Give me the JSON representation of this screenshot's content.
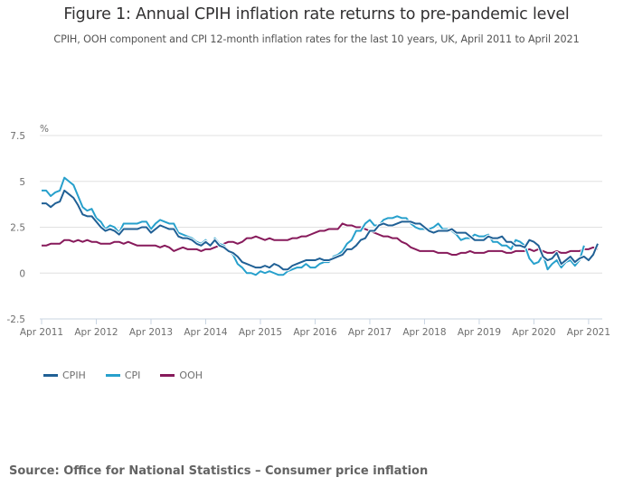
{
  "header": {
    "title": "Figure 1: Annual CPIH inflation rate returns to pre-pandemic level",
    "subtitle": "CPIH, OOH component and CPI 12-month inflation rates for the last 10 years, UK, April 2011 to April 2021"
  },
  "footer": {
    "source": "Source: Office for National Statistics – Consumer price inflation"
  },
  "chart_data": {
    "type": "line",
    "title": "Figure 1: Annual CPIH inflation rate returns to pre-pandemic level",
    "subtitle": "CPIH, OOH component and CPI 12-month inflation rates for the last 10 years, UK, April 2011 to April 2021",
    "xlabel": "",
    "ylabel": "%",
    "x_start": "Apr 2011",
    "x_end": "Apr 2021",
    "x_frequency": "monthly",
    "xticks": [
      "Apr 2011",
      "Apr 2012",
      "Apr 2013",
      "Apr 2014",
      "Apr 2015",
      "Apr 2016",
      "Apr 2017",
      "Apr 2018",
      "Apr 2019",
      "Apr 2020",
      "Apr 2021"
    ],
    "yticks": [
      -2.5,
      0,
      2.5,
      5,
      7.5
    ],
    "ylim": [
      -2.5,
      7.5
    ],
    "grid": true,
    "legend_position": "bottom-left",
    "series": [
      {
        "name": "CPIH",
        "color": "#206095",
        "values": [
          3.8,
          3.8,
          3.6,
          3.8,
          3.9,
          4.5,
          4.3,
          4.1,
          3.7,
          3.2,
          3.1,
          3.1,
          2.8,
          2.5,
          2.3,
          2.4,
          2.3,
          2.1,
          2.4,
          2.4,
          2.4,
          2.4,
          2.5,
          2.5,
          2.2,
          2.4,
          2.6,
          2.5,
          2.4,
          2.4,
          2.0,
          1.9,
          1.9,
          1.8,
          1.6,
          1.5,
          1.7,
          1.5,
          1.8,
          1.5,
          1.4,
          1.2,
          1.1,
          0.9,
          0.6,
          0.5,
          0.4,
          0.3,
          0.3,
          0.4,
          0.3,
          0.5,
          0.4,
          0.2,
          0.2,
          0.4,
          0.5,
          0.6,
          0.7,
          0.7,
          0.7,
          0.8,
          0.7,
          0.7,
          0.8,
          0.9,
          1.0,
          1.3,
          1.3,
          1.5,
          1.8,
          1.9,
          2.3,
          2.3,
          2.6,
          2.7,
          2.6,
          2.6,
          2.7,
          2.8,
          2.8,
          2.8,
          2.7,
          2.7,
          2.5,
          2.3,
          2.2,
          2.3,
          2.3,
          2.3,
          2.4,
          2.2,
          2.2,
          2.2,
          2.0,
          1.8,
          1.8,
          1.8,
          2.0,
          1.9,
          1.9,
          2.0,
          1.7,
          1.7,
          1.5,
          1.5,
          1.4,
          1.8,
          1.7,
          1.5,
          0.9,
          0.7,
          0.8,
          1.1,
          0.5,
          0.7,
          0.9,
          0.6,
          0.8,
          0.9,
          0.7,
          1.0,
          1.6
        ],
        "_note": "monthly values Apr 2011 to Apr 2021"
      },
      {
        "name": "CPI",
        "color": "#27a0cc",
        "values": [
          4.5,
          4.5,
          4.2,
          4.4,
          4.5,
          5.2,
          5.0,
          4.8,
          4.2,
          3.6,
          3.4,
          3.5,
          3.0,
          2.8,
          2.4,
          2.6,
          2.5,
          2.2,
          2.7,
          2.7,
          2.7,
          2.7,
          2.8,
          2.8,
          2.4,
          2.7,
          2.9,
          2.8,
          2.7,
          2.7,
          2.2,
          2.1,
          2.0,
          1.9,
          1.7,
          1.6,
          1.8,
          1.5,
          1.9,
          1.6,
          1.5,
          1.2,
          1.0,
          0.5,
          0.3,
          0.0,
          0.0,
          -0.1,
          0.1,
          0.0,
          0.1,
          0.0,
          -0.1,
          -0.1,
          0.1,
          0.2,
          0.3,
          0.3,
          0.5,
          0.3,
          0.3,
          0.5,
          0.6,
          0.6,
          0.9,
          1.0,
          1.2,
          1.6,
          1.8,
          2.3,
          2.3,
          2.7,
          2.9,
          2.6,
          2.6,
          2.9,
          3.0,
          3.0,
          3.1,
          3.0,
          3.0,
          2.7,
          2.5,
          2.4,
          2.4,
          2.4,
          2.5,
          2.7,
          2.4,
          2.4,
          2.3,
          2.1,
          1.8,
          1.9,
          1.9,
          2.1,
          2.0,
          2.0,
          2.1,
          1.7,
          1.7,
          1.5,
          1.5,
          1.3,
          1.8,
          1.7,
          1.5,
          0.8,
          0.5,
          0.6,
          1.0,
          0.2,
          0.5,
          0.7,
          0.3,
          0.6,
          0.7,
          0.4,
          0.7,
          1.5
        ],
        "_note": "monthly values Apr 2011 to Apr 2021"
      },
      {
        "name": "OOH",
        "color": "#871a5b",
        "values": [
          1.5,
          1.5,
          1.6,
          1.6,
          1.6,
          1.8,
          1.8,
          1.7,
          1.8,
          1.7,
          1.8,
          1.7,
          1.7,
          1.6,
          1.6,
          1.6,
          1.7,
          1.7,
          1.6,
          1.7,
          1.6,
          1.5,
          1.5,
          1.5,
          1.5,
          1.5,
          1.4,
          1.5,
          1.4,
          1.2,
          1.3,
          1.4,
          1.3,
          1.3,
          1.3,
          1.2,
          1.3,
          1.3,
          1.4,
          1.5,
          1.6,
          1.7,
          1.7,
          1.6,
          1.7,
          1.9,
          1.9,
          2.0,
          1.9,
          1.8,
          1.9,
          1.8,
          1.8,
          1.8,
          1.8,
          1.9,
          1.9,
          2.0,
          2.0,
          2.1,
          2.2,
          2.3,
          2.3,
          2.4,
          2.4,
          2.4,
          2.7,
          2.6,
          2.6,
          2.5,
          2.5,
          2.4,
          2.3,
          2.2,
          2.1,
          2.0,
          2.0,
          1.9,
          1.9,
          1.7,
          1.6,
          1.4,
          1.3,
          1.2,
          1.2,
          1.2,
          1.2,
          1.1,
          1.1,
          1.1,
          1.0,
          1.0,
          1.1,
          1.1,
          1.2,
          1.1,
          1.1,
          1.1,
          1.2,
          1.2,
          1.2,
          1.2,
          1.1,
          1.1,
          1.2,
          1.2,
          1.2,
          1.3,
          1.2,
          1.3,
          1.2,
          1.1,
          1.1,
          1.2,
          1.1,
          1.1,
          1.2,
          1.2,
          1.2,
          1.3,
          1.3,
          1.4,
          1.3
        ],
        "_note": "monthly values Apr 2011 to Apr 2021"
      }
    ]
  },
  "legend": {
    "items": [
      {
        "label": "CPIH",
        "color": "#206095"
      },
      {
        "label": "CPI",
        "color": "#27a0cc"
      },
      {
        "label": "OOH",
        "color": "#871a5b"
      }
    ]
  }
}
